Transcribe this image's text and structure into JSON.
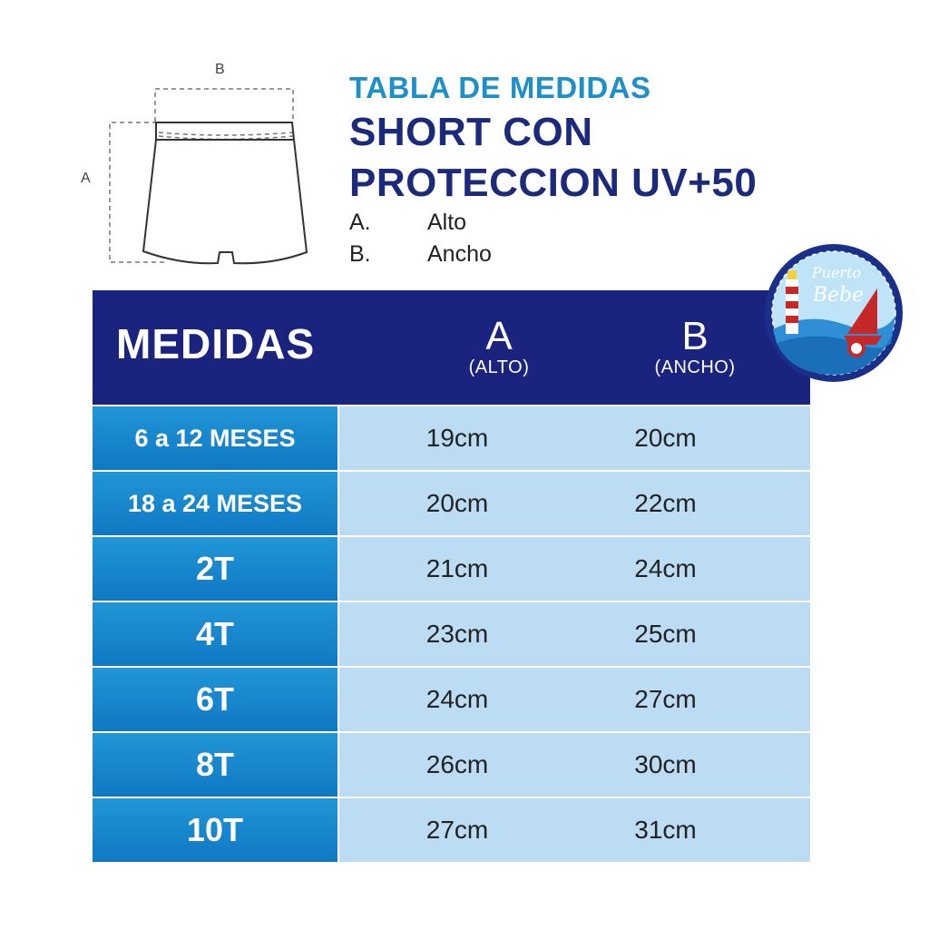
{
  "diagram": {
    "label_a": "A",
    "label_b": "B"
  },
  "header": {
    "subtitle": "TABLA DE MEDIDAS",
    "title_line1": "SHORT CON",
    "title_line2": "PROTECCION UV+50",
    "legend": [
      {
        "key": "A.",
        "value": "Alto"
      },
      {
        "key": "B.",
        "value": "Ancho"
      }
    ]
  },
  "logo": {
    "text_line1": "Puerto",
    "text_line2": "Bebe"
  },
  "table": {
    "header": {
      "medidas": "MEDIDAS",
      "col_a": "A",
      "col_a_sub": "(ALTO)",
      "col_b": "B",
      "col_b_sub": "(ANCHO)"
    },
    "rows": [
      {
        "size": "6 a 12 MESES",
        "a": "19cm",
        "b": "20cm"
      },
      {
        "size": "18 a 24 MESES",
        "a": "20cm",
        "b": "22cm"
      },
      {
        "size": "2T",
        "a": "21cm",
        "b": "24cm"
      },
      {
        "size": "4T",
        "a": "23cm",
        "b": "25cm"
      },
      {
        "size": "6T",
        "a": "24cm",
        "b": "27cm"
      },
      {
        "size": "8T",
        "a": "26cm",
        "b": "30cm"
      },
      {
        "size": "10T",
        "a": "27cm",
        "b": "31cm"
      }
    ]
  },
  "colors": {
    "navy": "#1a237e",
    "accent": "#1e8fc9",
    "cell": "#bcdcf3",
    "size_cell": "#1587cd"
  }
}
